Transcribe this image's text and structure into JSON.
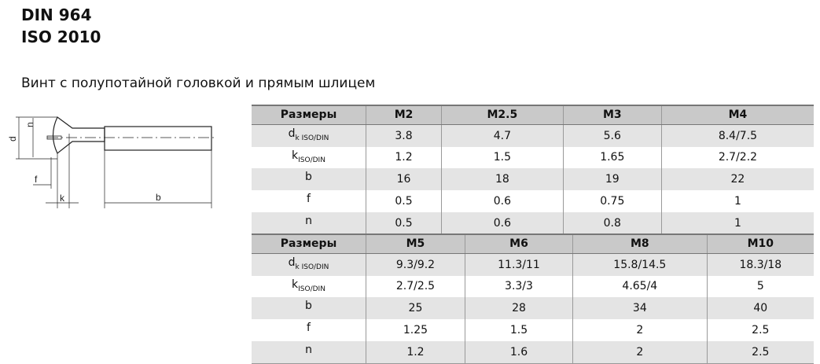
{
  "title": [
    "DIN 964",
    "ISO 2010"
  ],
  "subtitle": "Винт с полупотайной головкой и прямым шлицем",
  "drawing": {
    "labels": {
      "dk": "d",
      "dk_sub": "k",
      "n": "n",
      "f": "f",
      "k": "k",
      "b": "b"
    }
  },
  "tables": [
    {
      "header": [
        "Размеры",
        "M2",
        "M2.5",
        "M3",
        "M4"
      ],
      "rows": [
        {
          "label": "d",
          "sub": "k ISO/DIN",
          "values": [
            "3.8",
            "4.7",
            "5.6",
            "8.4/7.5"
          ]
        },
        {
          "label": "k",
          "sub": "ISO/DIN",
          "values": [
            "1.2",
            "1.5",
            "1.65",
            "2.7/2.2"
          ]
        },
        {
          "label": "b",
          "sub": "",
          "values": [
            "16",
            "18",
            "19",
            "22"
          ]
        },
        {
          "label": "f",
          "sub": "",
          "values": [
            "0.5",
            "0.6",
            "0.75",
            "1"
          ]
        },
        {
          "label": "n",
          "sub": "",
          "values": [
            "0.5",
            "0.6",
            "0.8",
            "1"
          ]
        }
      ]
    },
    {
      "header": [
        "Размеры",
        "M5",
        "M6",
        "M8",
        "M10"
      ],
      "rows": [
        {
          "label": "d",
          "sub": "k ISO/DIN",
          "values": [
            "9.3/9.2",
            "11.3/11",
            "15.8/14.5",
            "18.3/18"
          ]
        },
        {
          "label": "k",
          "sub": "ISO/DIN",
          "values": [
            "2.7/2.5",
            "3.3/3",
            "4.65/4",
            "5"
          ]
        },
        {
          "label": "b",
          "sub": "",
          "values": [
            "25",
            "28",
            "34",
            "40"
          ]
        },
        {
          "label": "f",
          "sub": "",
          "values": [
            "1.25",
            "1.5",
            "2",
            "2.5"
          ]
        },
        {
          "label": "n",
          "sub": "",
          "values": [
            "1.2",
            "1.6",
            "2",
            "2.5"
          ]
        }
      ]
    }
  ]
}
